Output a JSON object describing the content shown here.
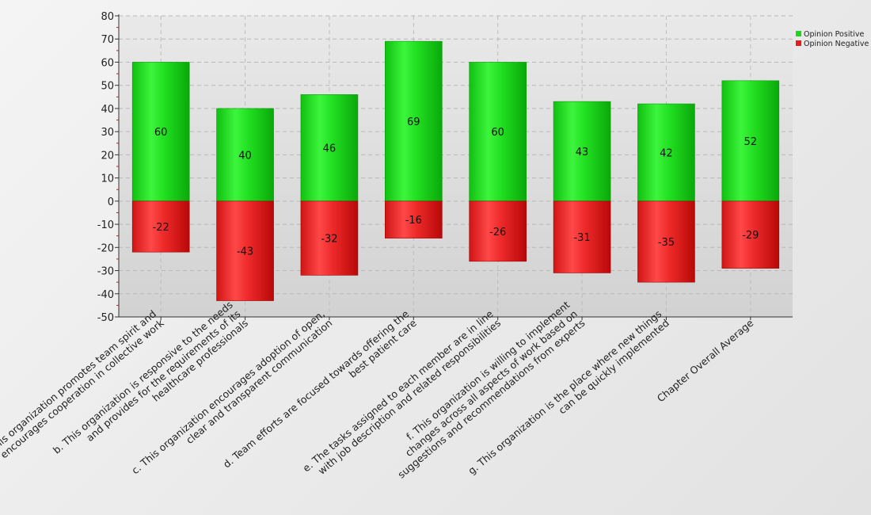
{
  "chart_data": {
    "type": "bar",
    "stacked": true,
    "categories": [
      [
        "a. This organization promotes team spirit and",
        "encourages cooperation in collective work"
      ],
      [
        "b. This organization is responsive to the needs",
        "and provides for the requirements of its",
        "healthcare professionals"
      ],
      [
        "c. This organization encourages adoption of open,",
        "clear and transparent communication"
      ],
      [
        "d. Team efforts are focused towards offering the",
        "best patient care"
      ],
      [
        "e. The tasks assigned to each member are in line",
        "with job description and related responsibilities"
      ],
      [
        "f. This organization is willing to implement",
        "changes across all aspects of work based on",
        "suggestions and recommendations from experts"
      ],
      [
        "g. This organization is the place where new things",
        "can be quickly implemented"
      ],
      [
        "Chapter Overall Average"
      ]
    ],
    "series": [
      {
        "name": "Opinion Positive",
        "color": "#1bd81b",
        "values": [
          60,
          40,
          46,
          69,
          60,
          43,
          42,
          52
        ]
      },
      {
        "name": "Opinion Negative",
        "color": "#e21e1e",
        "values": [
          -22,
          -43,
          -32,
          -16,
          -26,
          -31,
          -35,
          -29
        ]
      }
    ],
    "ylim": [
      -50,
      80
    ],
    "yticks": [
      80,
      70,
      60,
      50,
      40,
      30,
      20,
      10,
      0,
      -10,
      -20,
      -30,
      -40,
      -50
    ],
    "grid": true,
    "legend_position": "top-right"
  }
}
